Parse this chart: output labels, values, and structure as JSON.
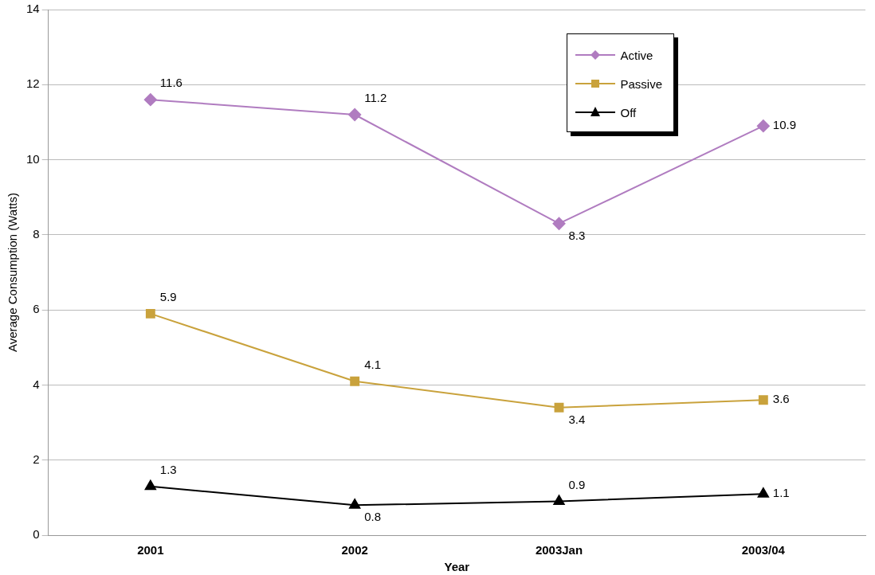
{
  "chart_data": {
    "type": "line",
    "xlabel": "Year",
    "ylabel": "Average Consumption (Watts)",
    "categories": [
      "2001",
      "2002",
      "2003Jan",
      "2003/04"
    ],
    "series": [
      {
        "name": "Active",
        "color": "#b07cc0",
        "marker": "diamond",
        "values": [
          11.6,
          11.2,
          8.3,
          10.9
        ]
      },
      {
        "name": "Passive",
        "color": "#c9a23c",
        "marker": "square",
        "values": [
          5.9,
          4.1,
          3.4,
          3.6
        ]
      },
      {
        "name": "Off",
        "color": "#000000",
        "marker": "triangle",
        "values": [
          1.3,
          0.8,
          0.9,
          1.1
        ]
      }
    ],
    "ylim": [
      0,
      14
    ],
    "yticks": [
      0,
      2,
      4,
      6,
      8,
      10,
      12,
      14
    ],
    "grid": "y",
    "legend": "top right",
    "data_labels": true,
    "line_style": "solid"
  }
}
